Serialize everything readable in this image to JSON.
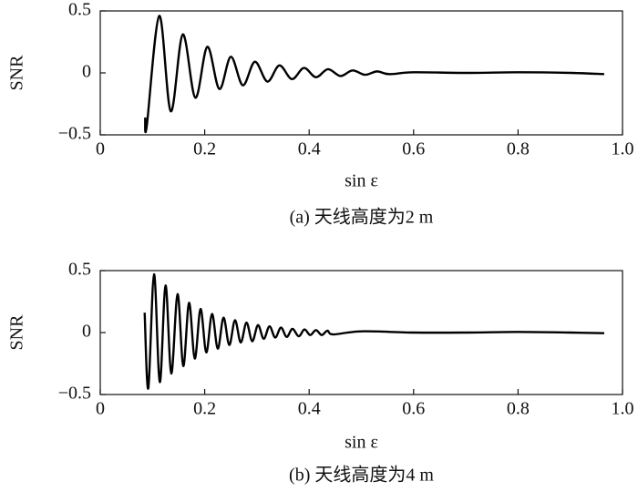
{
  "chart_data": [
    {
      "type": "line",
      "caption": "(a) 天线高度为2 m",
      "xlabel": "sin ε",
      "ylabel": "SNR",
      "color": "#000000",
      "x": [
        0.086,
        0.089,
        0.113,
        0.135,
        0.158,
        0.182,
        0.205,
        0.228,
        0.25,
        0.273,
        0.296,
        0.32,
        0.343,
        0.367,
        0.39,
        0.413,
        0.436,
        0.46,
        0.483,
        0.507,
        0.53,
        0.553,
        0.6,
        0.7,
        0.8,
        0.9,
        0.965
      ],
      "values": [
        -0.36,
        -0.43,
        0.46,
        -0.31,
        0.31,
        -0.2,
        0.21,
        -0.13,
        0.13,
        -0.1,
        0.09,
        -0.07,
        0.06,
        -0.05,
        0.04,
        -0.035,
        0.03,
        -0.025,
        0.02,
        -0.015,
        0.012,
        -0.01,
        0.005,
        0,
        0.005,
        0,
        -0.01
      ],
      "xlim": [
        0,
        1.0
      ],
      "ylim": [
        -0.5,
        0.5
      ],
      "xticks": [
        0,
        0.2,
        0.4,
        0.6,
        0.8,
        {
          "value": 1.0,
          "label": "1.0"
        }
      ],
      "yticks": [
        {
          "value": -0.5,
          "label": "−0.5"
        },
        0,
        0.5
      ]
    },
    {
      "type": "line",
      "caption": "(b) 天线高度为4 m",
      "xlabel": "sin ε",
      "ylabel": "SNR",
      "color": "#000000",
      "x": [
        0.085,
        0.092,
        0.103,
        0.114,
        0.125,
        0.136,
        0.148,
        0.159,
        0.17,
        0.181,
        0.192,
        0.203,
        0.214,
        0.225,
        0.236,
        0.247,
        0.258,
        0.269,
        0.28,
        0.291,
        0.302,
        0.313,
        0.324,
        0.335,
        0.346,
        0.357,
        0.368,
        0.38,
        0.391,
        0.402,
        0.413,
        0.424,
        0.435,
        0.446,
        0.5,
        0.6,
        0.7,
        0.8,
        0.9,
        0.965
      ],
      "values": [
        0.16,
        -0.45,
        0.47,
        -0.4,
        0.38,
        -0.33,
        0.31,
        -0.27,
        0.24,
        -0.21,
        0.19,
        -0.16,
        0.15,
        -0.13,
        0.12,
        -0.1,
        0.1,
        -0.08,
        0.08,
        -0.07,
        0.06,
        -0.05,
        0.05,
        -0.04,
        0.04,
        -0.035,
        0.03,
        -0.03,
        0.025,
        -0.02,
        0.02,
        -0.02,
        0.015,
        -0.015,
        0.01,
        0,
        0,
        0.005,
        0,
        -0.005
      ],
      "xlim": [
        0,
        1.0
      ],
      "ylim": [
        -0.5,
        0.5
      ],
      "xticks": [
        0,
        0.2,
        0.4,
        0.6,
        0.8,
        {
          "value": 1.0,
          "label": "1.0"
        }
      ],
      "yticks": [
        {
          "value": -0.5,
          "label": "−0.5"
        },
        0,
        0.5
      ]
    }
  ]
}
